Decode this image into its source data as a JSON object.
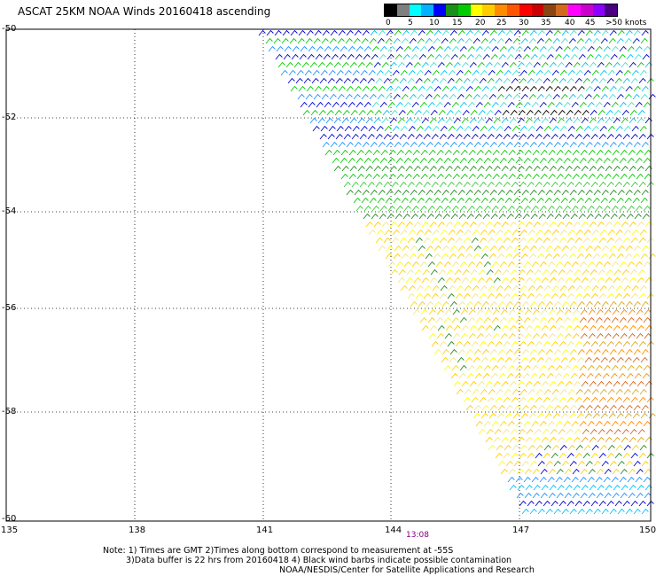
{
  "title": "ASCAT 25KM NOAA Winds 20160418 ascending",
  "legend": {
    "colors": [
      "#000000",
      "#7f7f7f",
      "#00ffff",
      "#00b2ff",
      "#0000ff",
      "#1a8f1a",
      "#00cc00",
      "#ffff00",
      "#ffcc00",
      "#ff8c00",
      "#ff5500",
      "#ff0000",
      "#cc0000",
      "#8b4513",
      "#d2691e",
      "#ff00ff",
      "#cc00cc",
      "#8b00ff",
      "#4b0082"
    ],
    "ticks": [
      "0",
      "5",
      "10",
      "15",
      "20",
      "25",
      "30",
      "35",
      "40",
      "45",
      ">50 knots"
    ]
  },
  "axes": {
    "lat_labels": [
      "-50",
      "-52",
      "-54",
      "-56",
      "-58",
      "-60"
    ],
    "lon_labels": [
      "135",
      "138",
      "141",
      "144",
      "147",
      "150"
    ]
  },
  "time_label": "13:08",
  "notes": [
    "Note: 1) Times are GMT 2)Times along bottom correspond to measurement at -55S",
    "3)Data buffer is 22 hrs from 20160418 4) Black wind barbs indicate possible contamination",
    "NOAA/NESDIS/Center for Satellite Applications and Research"
  ]
}
